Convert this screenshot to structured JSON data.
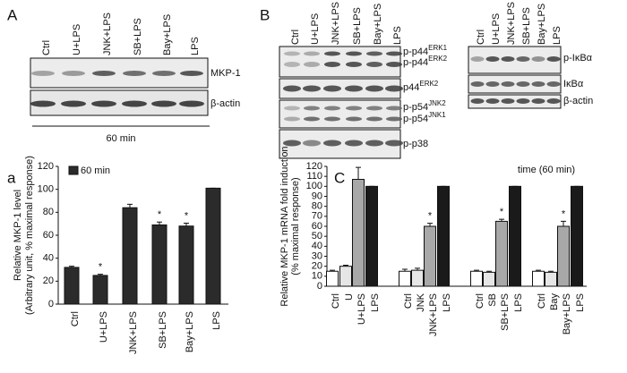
{
  "panel_a": {
    "label": "A",
    "lanes": [
      "Ctrl",
      "U+LPS",
      "JNK+LPS",
      "SB+LPS",
      "Bay+LPS",
      "LPS"
    ],
    "bands": [
      "MKP-1",
      "β-actin"
    ],
    "time": "60 min"
  },
  "panel_b": {
    "label": "B",
    "left_blot": {
      "lanes": [
        "Ctrl",
        "U+LPS",
        "JNK+LPS",
        "SB+LPS",
        "Bay+LPS",
        "LPS"
      ],
      "bands": [
        {
          "text": "p-p44",
          "sup": "ERK1"
        },
        {
          "text": "p-p44",
          "sup": "ERK2"
        },
        {
          "text": "p44",
          "sup": "ERK2"
        },
        {
          "text": "p-p54",
          "sup": "JNK2"
        },
        {
          "text": "p-p54",
          "sup": "JNK1"
        },
        {
          "text": "p-p38"
        }
      ]
    },
    "right_blot": {
      "lanes": [
        "Ctrl",
        "U+LPS",
        "JNK+LPS",
        "SB+LPS",
        "Bay+LPS",
        "LPS"
      ],
      "bands": [
        "p-IκBα",
        "IκBα",
        "β-actin"
      ]
    }
  },
  "chart_data": [
    {
      "type": "bar",
      "panel_label": "a",
      "ylabel": [
        "Relative MKP-1 level",
        "(Arbitrary unit, % maximal response)"
      ],
      "categories": [
        "Ctrl",
        "U+LPS",
        "JNK+LPS",
        "SB+LPS",
        "Bay+LPS",
        "LPS"
      ],
      "series": [
        {
          "name": "60 min",
          "color": "#2b2b2b",
          "values": [
            32,
            25,
            84,
            69,
            68,
            101
          ],
          "errors": [
            1,
            1,
            3,
            2.5,
            2.5,
            0
          ]
        }
      ],
      "significance_marker": "*",
      "significant": [
        false,
        true,
        false,
        true,
        true,
        false
      ],
      "ylim": [
        0,
        120
      ],
      "yticks": [
        0,
        20,
        40,
        60,
        80,
        100,
        120
      ]
    },
    {
      "type": "bar",
      "panel_label": "C",
      "annotation": "time (60 min)",
      "ylabel": [
        "Relative MKP-1 mRNA fold induction",
        "(% maximal response)"
      ],
      "colors": [
        "#ffffff",
        "#e6e6e6",
        "#a8a8a8",
        "#1a1a1a"
      ],
      "groups": [
        {
          "categories": [
            "Ctrl",
            "U",
            "U+LPS",
            "LPS"
          ],
          "values": [
            15,
            20,
            107,
            100
          ],
          "errors": [
            1,
            1,
            12,
            0
          ],
          "significant": [
            false,
            false,
            false,
            false
          ]
        },
        {
          "categories": [
            "Ctrl",
            "JNK",
            "JNK+LPS",
            "LPS"
          ],
          "values": [
            15,
            16,
            60,
            100
          ],
          "errors": [
            2,
            2,
            3,
            0
          ],
          "significant": [
            false,
            false,
            true,
            false
          ]
        },
        {
          "categories": [
            "Ctrl",
            "SB",
            "SB+LPS",
            "LPS"
          ],
          "values": [
            15,
            14,
            65,
            100
          ],
          "errors": [
            1,
            1,
            2,
            0
          ],
          "significant": [
            false,
            false,
            true,
            false
          ]
        },
        {
          "categories": [
            "Ctrl",
            "Bay",
            "Bay+LPS",
            "LPS"
          ],
          "values": [
            15,
            14,
            60,
            100
          ],
          "errors": [
            1,
            1,
            5,
            0
          ],
          "significant": [
            false,
            false,
            true,
            false
          ]
        }
      ],
      "significance_marker": "*",
      "ylim": [
        0,
        120
      ],
      "yticks": [
        0,
        10,
        20,
        30,
        40,
        50,
        60,
        70,
        80,
        90,
        100,
        110,
        120
      ]
    }
  ]
}
